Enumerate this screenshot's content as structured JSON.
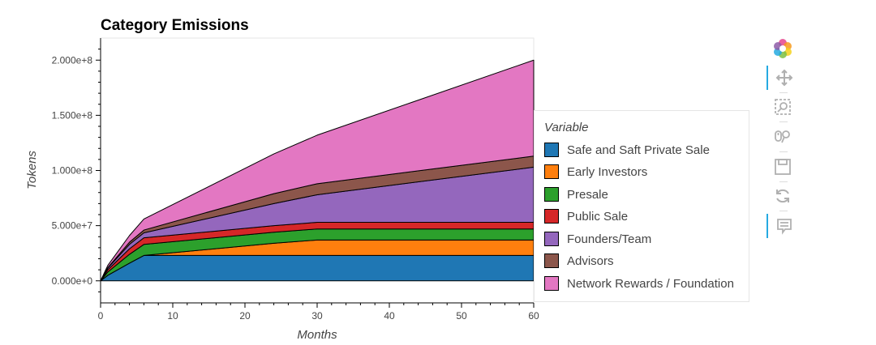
{
  "chart_data": {
    "type": "area",
    "stacked": true,
    "title": "Category Emissions",
    "xlabel": "Months",
    "ylabel": "Tokens",
    "xlim": [
      0,
      60
    ],
    "ylim": [
      -20000000,
      220000000
    ],
    "x_ticks": [
      0,
      10,
      20,
      30,
      40,
      50,
      60
    ],
    "y_ticks": [
      0,
      50000000,
      100000000,
      150000000,
      200000000
    ],
    "y_tick_labels": [
      "0.000e+0",
      "5.000e+7",
      "1.000e+8",
      "1.500e+8",
      "2.000e+8"
    ],
    "legend_title": "Variable",
    "legend_placement": "right",
    "x": [
      0,
      1,
      4,
      6,
      24,
      30,
      60
    ],
    "series": [
      {
        "name": "Safe and Saft Private Sale",
        "color": "#1f77b4",
        "values": [
          0,
          5000000,
          16000000,
          23000000,
          23000000,
          23000000,
          23000000
        ]
      },
      {
        "name": "Early Investors",
        "color": "#ff7f0e",
        "values": [
          0,
          0,
          0,
          0,
          11000000,
          14000000,
          14000000
        ]
      },
      {
        "name": "Presale",
        "color": "#2ca02c",
        "values": [
          0,
          3000000,
          8000000,
          10000000,
          10000000,
          10000000,
          10000000
        ]
      },
      {
        "name": "Public Sale",
        "color": "#d62728",
        "values": [
          0,
          2000000,
          5000000,
          6000000,
          6000000,
          6000000,
          6000000
        ]
      },
      {
        "name": "Founders/Team",
        "color": "#9467bd",
        "values": [
          0,
          1500000,
          4000000,
          4500000,
          20000000,
          25000000,
          50000000
        ]
      },
      {
        "name": "Advisors",
        "color": "#8c564b",
        "values": [
          0,
          500000,
          2000000,
          2500000,
          9000000,
          10000000,
          10000000
        ]
      },
      {
        "name": "Network Rewards / Foundation",
        "color": "#e377c2",
        "values": [
          0,
          2000000,
          6000000,
          10000000,
          36000000,
          44000000,
          87000000
        ]
      }
    ]
  },
  "toolbar": [
    {
      "name": "bokeh-logo-icon"
    },
    {
      "name": "pan-tool-icon"
    },
    {
      "name": "box-zoom-tool-icon"
    },
    {
      "name": "wheel-zoom-tool-icon"
    },
    {
      "name": "save-tool-icon"
    },
    {
      "name": "reset-tool-icon"
    },
    {
      "name": "hover-tool-icon"
    }
  ]
}
